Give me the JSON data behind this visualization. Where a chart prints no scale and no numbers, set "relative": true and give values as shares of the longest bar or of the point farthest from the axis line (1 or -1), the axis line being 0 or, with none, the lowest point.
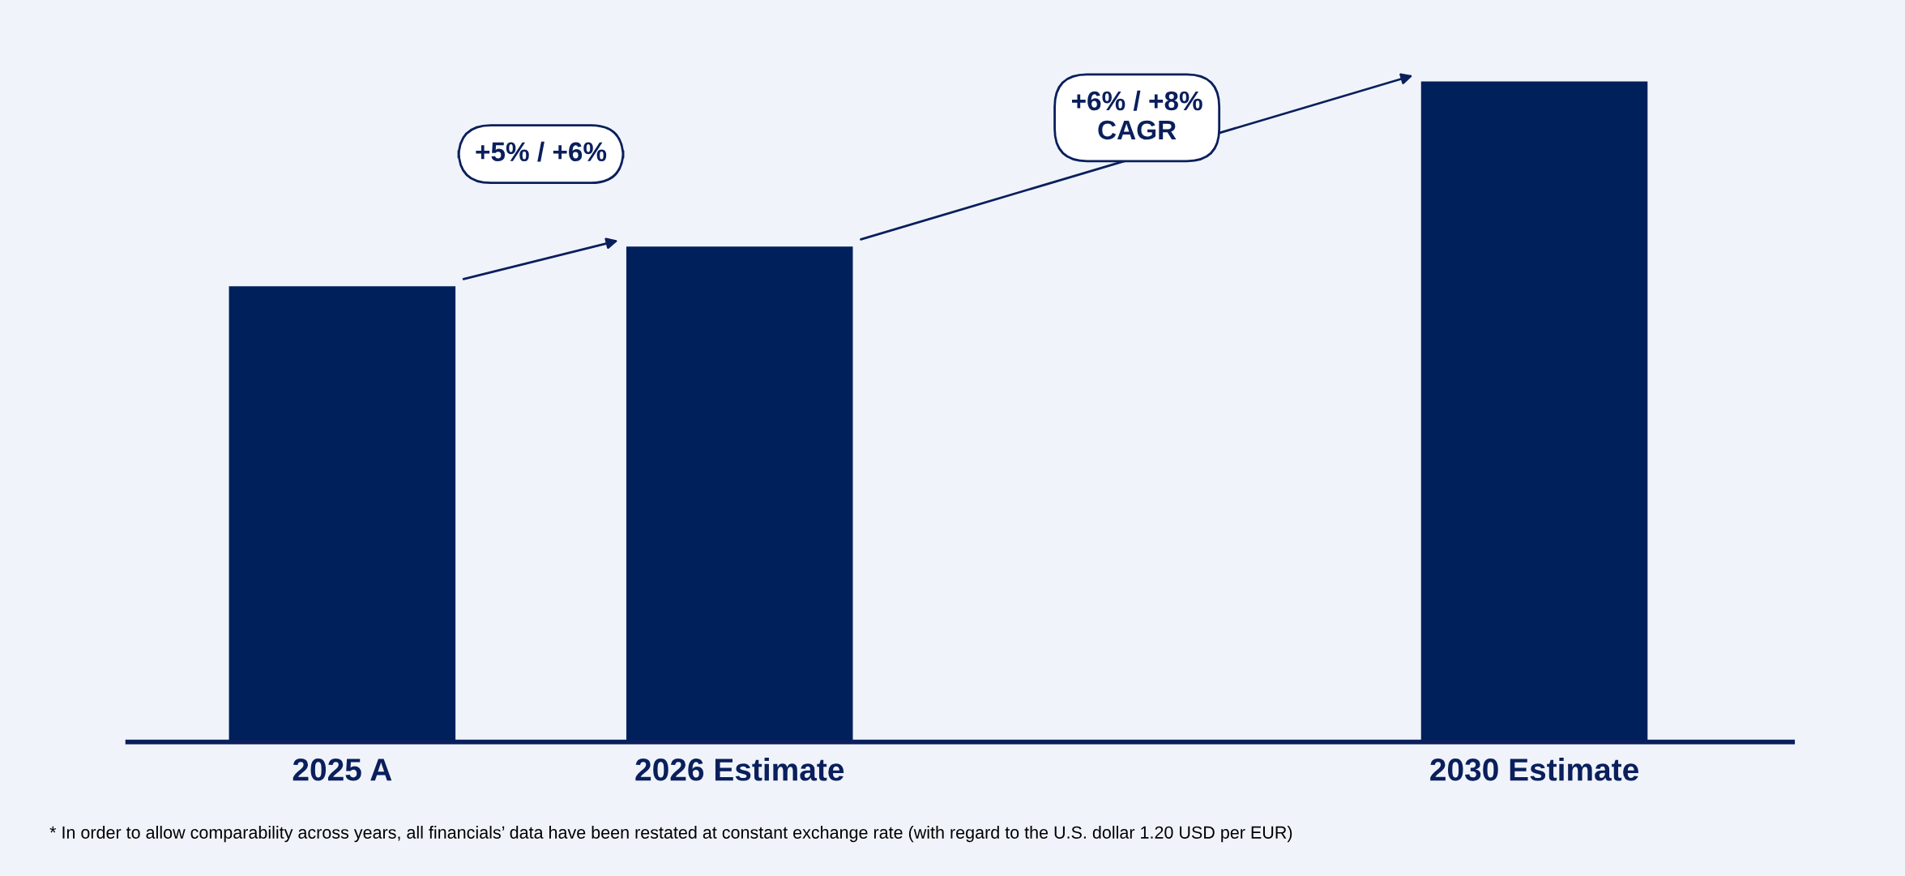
{
  "chart_data": {
    "type": "bar",
    "relative": true,
    "categories": [
      "2025 A",
      "2026 Estimate",
      null,
      "2030 Estimate"
    ],
    "values": [
      0.69,
      0.75,
      null,
      1
    ],
    "color": "#00205b",
    "annotations": [
      "+5% / +6%",
      "+6% / +8%\nCAGR",
      "* In order to allow comparability across years, all financials’ data have been restated at constant exchange rate (with regard to the U.S. dollar 1.20 USD per EUR)"
    ]
  }
}
